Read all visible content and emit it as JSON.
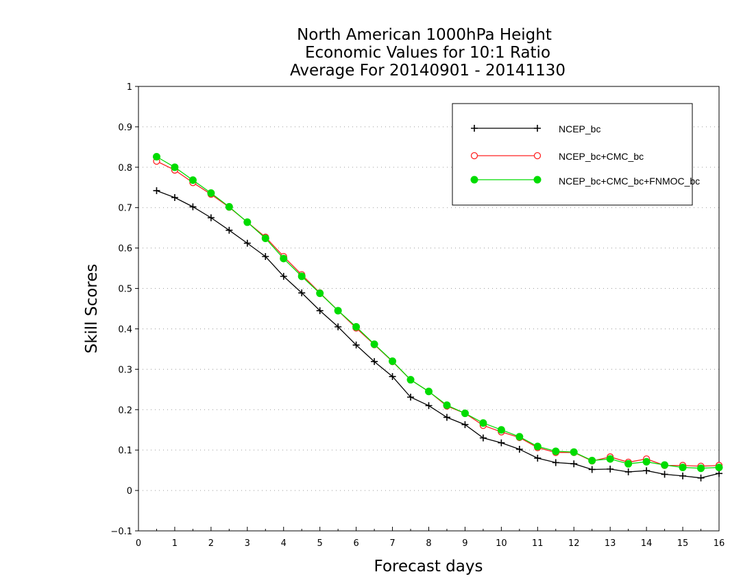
{
  "chart_data": {
    "type": "line",
    "title_lines": [
      "North American 1000hPa Height",
      "Economic Values for 10:1 Ratio",
      "Average For 20140901 - 20141130"
    ],
    "xlabel": "Forecast days",
    "ylabel": "Skill Scores",
    "xlim": [
      0,
      16
    ],
    "ylim": [
      -0.1,
      1
    ],
    "x_ticks": [
      "0",
      "1",
      "2",
      "3",
      "4",
      "5",
      "6",
      "7",
      "8",
      "9",
      "10",
      "11",
      "12",
      "13",
      "14",
      "15",
      "16"
    ],
    "y_ticks": [
      "−0.1",
      "0",
      "0.1",
      "0.2",
      "0.3",
      "0.4",
      "0.5",
      "0.6",
      "0.7",
      "0.8",
      "0.9",
      "1"
    ],
    "y_tick_values": [
      -0.1,
      0,
      0.1,
      0.2,
      0.3,
      0.4,
      0.5,
      0.6,
      0.7,
      0.8,
      0.9,
      1
    ],
    "grid": "dotted horizontal",
    "legend_position": "top-right",
    "x": [
      0.5,
      1,
      1.5,
      2,
      2.5,
      3,
      3.5,
      4,
      4.5,
      5,
      5.5,
      6,
      6.5,
      7,
      7.5,
      8,
      8.5,
      9,
      9.5,
      10,
      10.5,
      11,
      11.5,
      12,
      12.5,
      13,
      13.5,
      14,
      14.5,
      15,
      15.5,
      16
    ],
    "series": [
      {
        "name": "NCEP_bc",
        "color": "#000000",
        "marker": "plus",
        "values": [
          0.742,
          0.725,
          0.702,
          0.675,
          0.644,
          0.612,
          0.579,
          0.53,
          0.489,
          0.445,
          0.405,
          0.36,
          0.319,
          0.282,
          0.231,
          0.21,
          0.181,
          0.163,
          0.13,
          0.118,
          0.102,
          0.08,
          0.069,
          0.066,
          0.052,
          0.053,
          0.046,
          0.049,
          0.04,
          0.036,
          0.031,
          0.042
        ]
      },
      {
        "name": "NCEP_bc+CMC_bc",
        "color": "#ff2020",
        "marker": "open-circle",
        "values": [
          0.815,
          0.793,
          0.762,
          0.733,
          0.701,
          0.664,
          0.627,
          0.579,
          0.534,
          0.489,
          0.445,
          0.402,
          0.361,
          0.319,
          0.274,
          0.245,
          0.209,
          0.191,
          0.161,
          0.145,
          0.131,
          0.106,
          0.094,
          0.094,
          0.073,
          0.083,
          0.07,
          0.078,
          0.062,
          0.062,
          0.06,
          0.062
        ]
      },
      {
        "name": "NCEP_bc+CMC_bc+FNMOC_bc",
        "color": "#00dc00",
        "marker": "filled-circle",
        "values": [
          0.826,
          0.8,
          0.768,
          0.736,
          0.702,
          0.664,
          0.624,
          0.574,
          0.53,
          0.488,
          0.445,
          0.405,
          0.362,
          0.32,
          0.274,
          0.245,
          0.211,
          0.191,
          0.167,
          0.15,
          0.133,
          0.109,
          0.097,
          0.095,
          0.074,
          0.078,
          0.066,
          0.071,
          0.063,
          0.057,
          0.055,
          0.057
        ]
      }
    ]
  }
}
